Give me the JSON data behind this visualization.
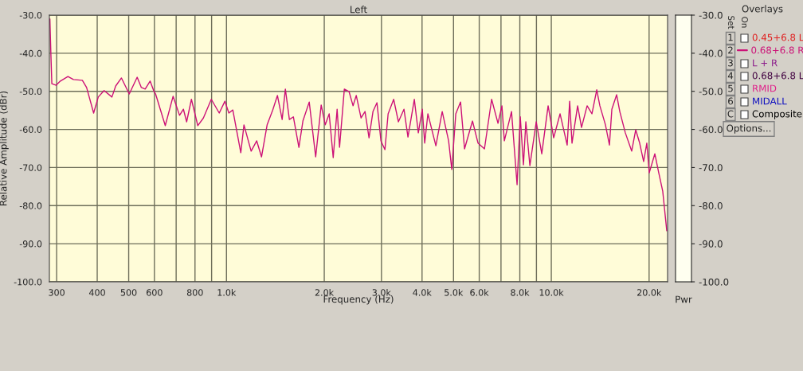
{
  "chart_data": {
    "type": "line",
    "title": "Left",
    "xlabel": "Frequency (Hz)",
    "ylabel": "Relative Amplitude (dBr)",
    "x": [
      286,
      288,
      290,
      299,
      308,
      325,
      338,
      360,
      371,
      390,
      403,
      420,
      444,
      456,
      475,
      502,
      531,
      547,
      562,
      582,
      598,
      605,
      648,
      685,
      717,
      737,
      754,
      780,
      816,
      849,
      898,
      950,
      989,
      1017,
      1046,
      1107,
      1132,
      1191,
      1239,
      1282,
      1334,
      1388,
      1435,
      1484,
      1518,
      1562,
      1607,
      1671,
      1719,
      1798,
      1882,
      1957,
      2014,
      2071,
      2131,
      2191,
      2229,
      2306,
      2385,
      2453,
      2509,
      2596,
      2670,
      2747,
      2825,
      2906,
      2989,
      3075,
      3145,
      3271,
      3383,
      3519,
      3620,
      3787,
      3896,
      4007,
      4076,
      4169,
      4412,
      4615,
      4829,
      4939,
      5081,
      5256,
      5406,
      5720,
      5950,
      6226,
      6551,
      6853,
      7047,
      7168,
      7543,
      7846,
      8025,
      8208,
      8349,
      8590,
      8987,
      9346,
      9777,
      10170,
      10640,
      11190,
      11390,
      11580,
      12050,
      12390,
      12890,
      13340,
      13800,
      14110,
      14680,
      15100,
      15360,
      15890,
      16250,
      16900,
      17680,
      18190,
      18710,
      19240,
      19680,
      20020,
      20830,
      21420,
      22030,
      22670
    ],
    "series": [
      {
        "name": "0.68+6.8 R",
        "color": "#cc1177",
        "values": [
          -31,
          -40,
          -48,
          -48.4,
          -47.3,
          -46.1,
          -46.9,
          -47.1,
          -49,
          -55.7,
          -51.5,
          -49.8,
          -51.5,
          -48.6,
          -46.5,
          -50.7,
          -46.3,
          -49,
          -49.4,
          -47.3,
          -50,
          -50.7,
          -59,
          -51.3,
          -56.3,
          -54.7,
          -58,
          -52.1,
          -59,
          -57,
          -52.1,
          -55.7,
          -52.6,
          -55.7,
          -54.9,
          -66.1,
          -58.8,
          -65.7,
          -63,
          -67.2,
          -58.8,
          -54.9,
          -51.1,
          -57.4,
          -49.4,
          -57.4,
          -56.7,
          -64.7,
          -57.8,
          -52.8,
          -67.2,
          -53.6,
          -58.8,
          -55.9,
          -67.4,
          -54.7,
          -64.7,
          -49.4,
          -50.1,
          -53.8,
          -51.1,
          -57,
          -55.3,
          -62.2,
          -55.3,
          -53,
          -63,
          -65.3,
          -55.9,
          -52.1,
          -58,
          -54.7,
          -62,
          -52.1,
          -60.9,
          -54.7,
          -63.6,
          -55.9,
          -64.3,
          -55.3,
          -63,
          -70.5,
          -55.9,
          -52.8,
          -65.1,
          -57.8,
          -63.6,
          -65.1,
          -52.1,
          -58.4,
          -53.8,
          -63,
          -55.3,
          -74.5,
          -56.7,
          -69.3,
          -58,
          -69.5,
          -58,
          -66.4,
          -53.8,
          -62.2,
          -55.9,
          -64.1,
          -52.6,
          -63.6,
          -53.8,
          -59.5,
          -53.8,
          -55.9,
          -49.6,
          -53.8,
          -58.8,
          -64.1,
          -54.7,
          -50.9,
          -55.3,
          -60.9,
          -65.7,
          -60.1,
          -63.6,
          -68.4,
          -63.6,
          -71.4,
          -66.4,
          -71.4,
          -76.2,
          -86.6
        ]
      }
    ],
    "xlim": [
      285,
      22800
    ],
    "log": "x",
    "xticks": [
      300,
      400,
      500,
      600,
      {
        "value": 700,
        "label": null
      },
      800,
      {
        "value": 900,
        "label": null
      },
      {
        "value": 1000,
        "label": "1.0k"
      },
      {
        "value": 2000,
        "label": "2.0k"
      },
      {
        "value": 3000,
        "label": "3.0k"
      },
      {
        "value": 4000,
        "label": "4.0k"
      },
      {
        "value": 5000,
        "label": "5.0k"
      },
      {
        "value": 6000,
        "label": "6.0k"
      },
      {
        "value": 7000,
        "label": null
      },
      {
        "value": 8000,
        "label": "8.0k"
      },
      {
        "value": 9000,
        "label": null
      },
      {
        "value": 10000,
        "label": "10.0k"
      },
      {
        "value": 20000,
        "label": "20.0k"
      }
    ],
    "ylim": [
      -100,
      -30
    ],
    "yticks": [
      {
        "value": -30,
        "label": "-30.0"
      },
      {
        "value": -40,
        "label": "-40.0"
      },
      {
        "value": -50,
        "label": "-50.0"
      },
      {
        "value": -60,
        "label": "-60.0"
      },
      {
        "value": -70,
        "label": "-70.0"
      },
      {
        "value": -80,
        "label": "-80.0"
      },
      {
        "value": -90,
        "label": "-90.0"
      },
      {
        "value": -100,
        "label": "-100.0"
      }
    ],
    "y2lim": [
      -100,
      -30
    ],
    "y2ticks": [
      {
        "value": -30,
        "label": "-30.0"
      },
      {
        "value": -40,
        "label": "-40.0"
      },
      {
        "value": -50,
        "label": "-50.0"
      },
      {
        "value": -60,
        "label": "-60.0"
      },
      {
        "value": -70,
        "label": "-70.0"
      },
      {
        "value": -80,
        "label": "-80.0"
      },
      {
        "value": -90,
        "label": "-90.0"
      },
      {
        "value": -100,
        "label": "-100.0"
      }
    ],
    "grid": true,
    "legend": "right",
    "marker": "none",
    "line_style": "solid",
    "annotations": [
      "Pwr",
      "Overlays",
      "Set",
      "On",
      "1",
      "0.45+6.8 L",
      "2",
      "3",
      "L + R",
      "4",
      "0.68+6.8 L",
      "5",
      "RMID",
      "6",
      "MIDALL",
      "C",
      "Composite",
      "Options..."
    ]
  }
}
